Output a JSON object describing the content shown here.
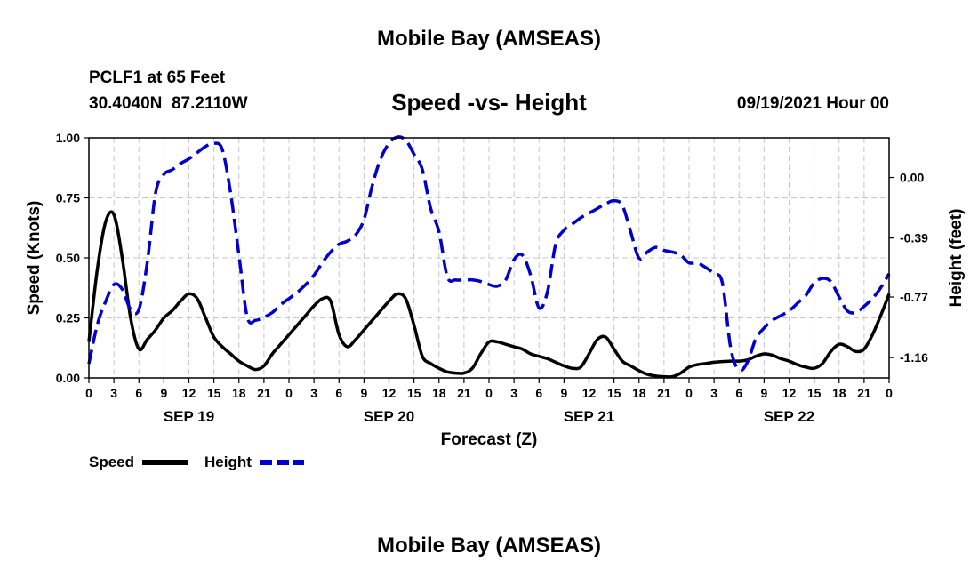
{
  "header": {
    "title_top": "Mobile Bay (AMSEAS)",
    "title_bottom": "Mobile Bay (AMSEAS)",
    "station": "PCLF1 at 65 Feet",
    "coords": "30.4040N  87.2110W",
    "subtitle": "Speed -vs- Height",
    "datetime": "09/19/2021 Hour 00"
  },
  "legend": {
    "speed_label": "Speed",
    "height_label": "Height"
  },
  "chart_data": {
    "type": "line",
    "title": "Speed -vs- Height",
    "xlabel": "Forecast (Z)",
    "ylabel": "Speed (Knots)",
    "y2label": "Height (feet)",
    "x_unit": "forecast hour from 09/19/2021 00Z",
    "x_tick_labels": [
      "0",
      "3",
      "6",
      "9",
      "12",
      "15",
      "18",
      "21",
      "0",
      "3",
      "6",
      "9",
      "12",
      "15",
      "18",
      "21",
      "0",
      "3",
      "6",
      "9",
      "12",
      "15",
      "18",
      "21",
      "0",
      "3",
      "6",
      "9",
      "12",
      "15",
      "18",
      "21",
      "0"
    ],
    "day_labels": [
      {
        "label": "SEP 19",
        "hour": 12
      },
      {
        "label": "SEP 20",
        "hour": 36
      },
      {
        "label": "SEP 21",
        "hour": 60
      },
      {
        "label": "SEP 22",
        "hour": 84
      }
    ],
    "xlim": [
      0,
      96
    ],
    "ylim": [
      0,
      1.0
    ],
    "y_ticks": [
      "0.00",
      "0.25",
      "0.50",
      "0.75",
      "1.00"
    ],
    "y2lim": [
      -1.291,
      0.255
    ],
    "y2_ticks": [
      "0.00",
      "-0.39",
      "-0.77",
      "-1.16"
    ],
    "grid": true,
    "legend_position": "bottom-left",
    "colors": {
      "speed": "#000000",
      "height": "#0000cc"
    },
    "series": [
      {
        "name": "Speed",
        "axis": "left",
        "style": "solid",
        "x": [
          0,
          1,
          2,
          3,
          4,
          5,
          6,
          7,
          8,
          9,
          10,
          11,
          12,
          13,
          14,
          15,
          16,
          17,
          18,
          19,
          20,
          21,
          22,
          23,
          24,
          25,
          26,
          27,
          28,
          29,
          30,
          31,
          32,
          33,
          34,
          35,
          36,
          37,
          38,
          39,
          40,
          41,
          42,
          43,
          44,
          45,
          46,
          47,
          48,
          49,
          50,
          51,
          52,
          53,
          54,
          55,
          56,
          57,
          58,
          59,
          60,
          61,
          62,
          63,
          64,
          65,
          66,
          67,
          68,
          69,
          70,
          71,
          72,
          73,
          74,
          75,
          76,
          77,
          78,
          79,
          80,
          81,
          82,
          83,
          84,
          85,
          86,
          87,
          88,
          89,
          90,
          91,
          92,
          93,
          94,
          95,
          96
        ],
        "values": [
          0.15,
          0.45,
          0.65,
          0.68,
          0.5,
          0.25,
          0.12,
          0.16,
          0.2,
          0.25,
          0.28,
          0.32,
          0.35,
          0.33,
          0.25,
          0.17,
          0.13,
          0.1,
          0.07,
          0.05,
          0.035,
          0.05,
          0.1,
          0.14,
          0.18,
          0.22,
          0.26,
          0.3,
          0.33,
          0.32,
          0.18,
          0.13,
          0.16,
          0.2,
          0.24,
          0.28,
          0.32,
          0.35,
          0.33,
          0.22,
          0.09,
          0.06,
          0.04,
          0.025,
          0.02,
          0.02,
          0.04,
          0.1,
          0.15,
          0.15,
          0.14,
          0.13,
          0.12,
          0.1,
          0.09,
          0.08,
          0.065,
          0.05,
          0.04,
          0.045,
          0.1,
          0.16,
          0.17,
          0.12,
          0.07,
          0.05,
          0.03,
          0.015,
          0.008,
          0.005,
          0.005,
          0.02,
          0.045,
          0.055,
          0.06,
          0.065,
          0.068,
          0.07,
          0.07,
          0.075,
          0.09,
          0.1,
          0.095,
          0.08,
          0.07,
          0.055,
          0.045,
          0.04,
          0.06,
          0.11,
          0.14,
          0.13,
          0.11,
          0.12,
          0.18,
          0.26,
          0.35
        ]
      },
      {
        "name": "Height",
        "axis": "right",
        "style": "dashed",
        "x": [
          0,
          1,
          2,
          3,
          4,
          5,
          6,
          7,
          8,
          9,
          10,
          11,
          12,
          13,
          14,
          15,
          16,
          17,
          18,
          19,
          20,
          21,
          22,
          23,
          24,
          25,
          26,
          27,
          28,
          29,
          30,
          31,
          32,
          33,
          34,
          35,
          36,
          37,
          38,
          39,
          40,
          41,
          42,
          43,
          44,
          45,
          46,
          47,
          48,
          49,
          50,
          51,
          52,
          53,
          54,
          55,
          56,
          57,
          58,
          59,
          60,
          61,
          62,
          63,
          64,
          65,
          66,
          67,
          68,
          69,
          70,
          71,
          72,
          73,
          74,
          75,
          76,
          77,
          78,
          79,
          80,
          81,
          82,
          83,
          84,
          85,
          86,
          87,
          88,
          89,
          90,
          91,
          92,
          93,
          94,
          95,
          96
        ],
        "values": [
          -1.2,
          -0.95,
          -0.8,
          -0.69,
          -0.72,
          -0.85,
          -0.85,
          -0.55,
          -0.1,
          0.02,
          0.05,
          0.09,
          0.12,
          0.16,
          0.2,
          0.22,
          0.18,
          -0.1,
          -0.5,
          -0.9,
          -0.92,
          -0.9,
          -0.87,
          -0.82,
          -0.78,
          -0.74,
          -0.69,
          -0.63,
          -0.55,
          -0.48,
          -0.43,
          -0.41,
          -0.37,
          -0.27,
          -0.05,
          0.12,
          0.22,
          0.26,
          0.24,
          0.15,
          0.05,
          -0.2,
          -0.35,
          -0.64,
          -0.66,
          -0.66,
          -0.66,
          -0.67,
          -0.69,
          -0.7,
          -0.66,
          -0.53,
          -0.5,
          -0.63,
          -0.84,
          -0.74,
          -0.43,
          -0.34,
          -0.3,
          -0.26,
          -0.23,
          -0.2,
          -0.17,
          -0.15,
          -0.18,
          -0.35,
          -0.52,
          -0.48,
          -0.45,
          -0.47,
          -0.48,
          -0.5,
          -0.55,
          -0.55,
          -0.58,
          -0.62,
          -0.68,
          -1.1,
          -1.24,
          -1.19,
          -1.04,
          -0.97,
          -0.92,
          -0.89,
          -0.86,
          -0.81,
          -0.76,
          -0.68,
          -0.65,
          -0.67,
          -0.77,
          -0.86,
          -0.87,
          -0.83,
          -0.78,
          -0.71,
          -0.62
        ]
      }
    ]
  }
}
